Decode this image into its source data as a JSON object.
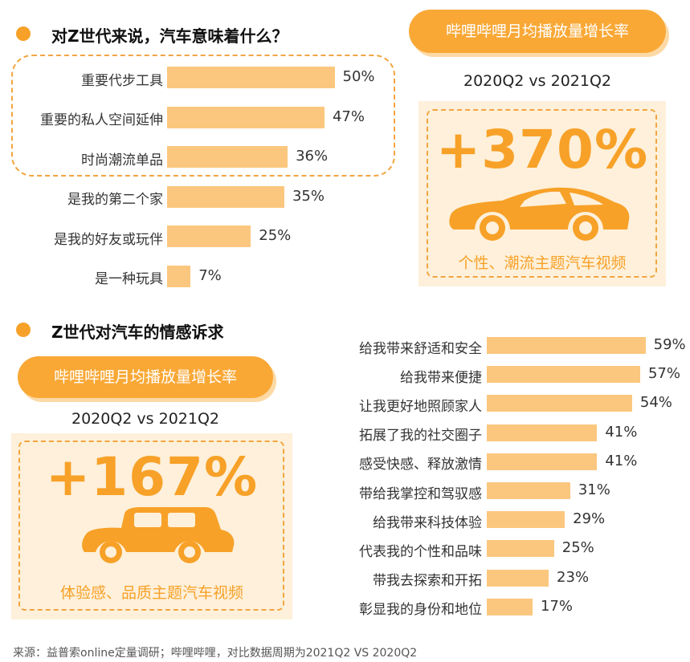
{
  "chart_data": [
    {
      "type": "bar",
      "orientation": "horizontal",
      "title": "对Z世代来说，汽车意味着什么？",
      "categories": [
        "重要代步工具",
        "重要的私人空间延伸",
        "时尚潮流单品",
        "是我的第二个家",
        "是我的好友或玩伴",
        "是一种玩具"
      ],
      "values": [
        50,
        47,
        36,
        35,
        25,
        7
      ],
      "value_labels": [
        "50%",
        "47%",
        "36%",
        "35%",
        "25%",
        "7%"
      ],
      "highlighted_categories": [
        "重要代步工具",
        "重要的私人空间延伸",
        "时尚潮流单品"
      ],
      "bar_color": "#FBC77E"
    },
    {
      "type": "bar",
      "orientation": "horizontal",
      "title": "Z世代对汽车的情感诉求",
      "categories": [
        "给我带来舒适和安全",
        "给我带来便捷",
        "让我更好地照顾家人",
        "拓展了我的社交圈子",
        "感受快感、释放激情",
        "带给我掌控和驾驭感",
        "给我带来科技体验",
        "代表我的个性和品味",
        "带我去探索和开拓",
        "彰显我的身份和地位"
      ],
      "values": [
        59,
        57,
        54,
        41,
        41,
        31,
        29,
        25,
        23,
        17
      ],
      "value_labels": [
        "59%",
        "57%",
        "54%",
        "41%",
        "41%",
        "31%",
        "29%",
        "25%",
        "23%",
        "17%"
      ],
      "bar_color": "#FBC77E"
    }
  ],
  "panel_top": {
    "pill": "哔哩哔哩月均播放量增长率",
    "period": "2020Q2 vs 2021Q2",
    "growth": "+370%",
    "icon": "sports-car-icon",
    "caption": "个性、潮流主题汽车视频"
  },
  "panel_bottom": {
    "pill": "哔哩哔哩月均播放量增长率",
    "period": "2020Q2 vs 2021Q2",
    "growth": "+167%",
    "icon": "vintage-car-icon",
    "caption": "体验感、品质主题汽车视频"
  },
  "source": "来源：益普索online定量调研；哔哩哔哩，对比数据周期为2021Q2 VS 2020Q2",
  "colors": {
    "accent": "#F7A128",
    "bar": "#FBC77E",
    "card": "#FEF0DA",
    "shadow": "#FCD9A5"
  }
}
